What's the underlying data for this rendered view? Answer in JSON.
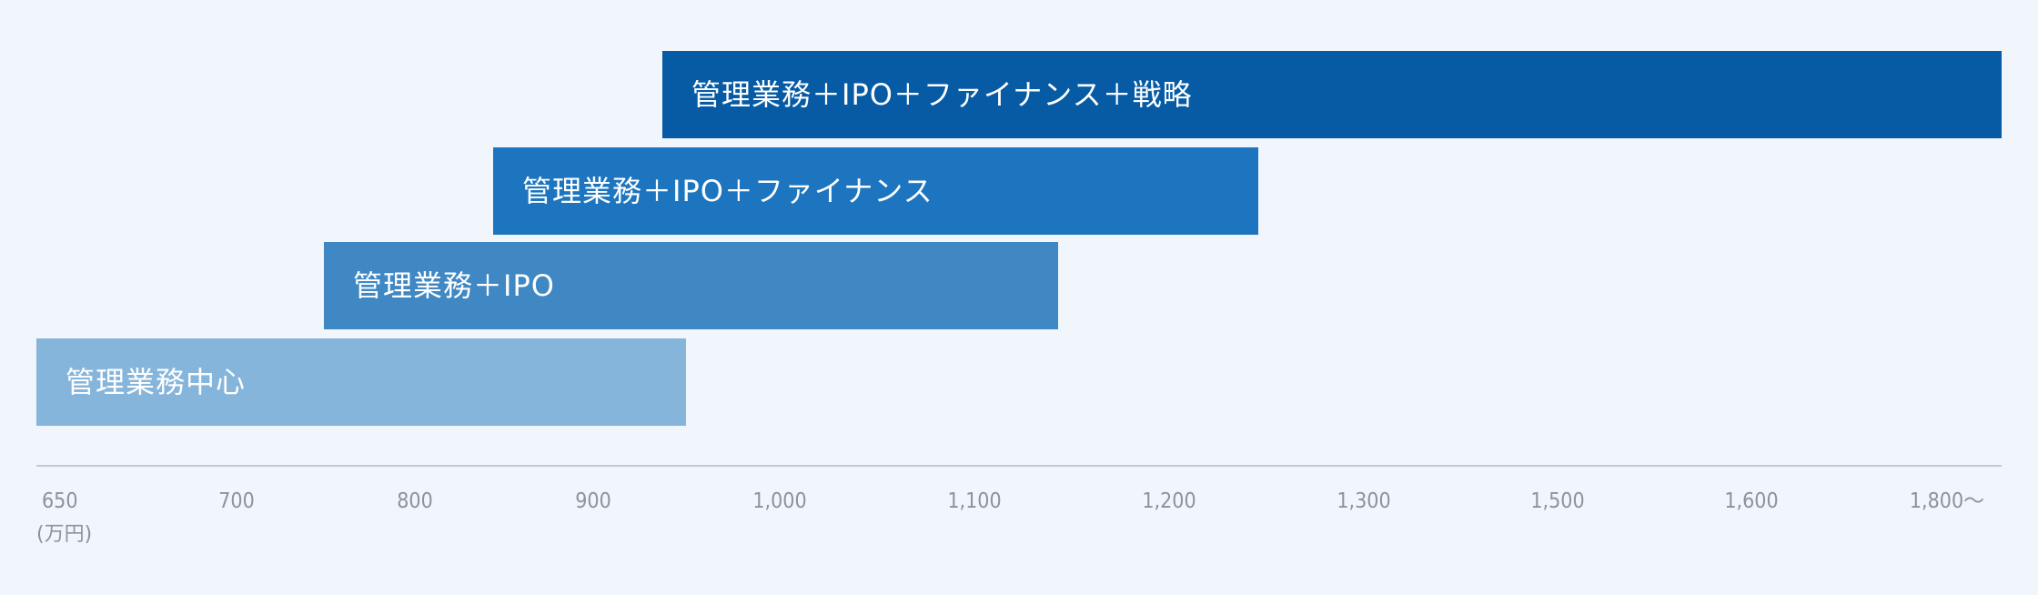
{
  "chart_data": {
    "type": "bar",
    "orientation": "horizontal-range",
    "xlabel": "(万円)",
    "ticks": [
      "650",
      "700",
      "800",
      "900",
      "1,000",
      "1,100",
      "1,200",
      "1,300",
      "1,500",
      "1,600",
      "1,800〜"
    ],
    "series": [
      {
        "label": "管理業務中心",
        "start": 650,
        "end": 950,
        "color": "#86b5db"
      },
      {
        "label": "管理業務＋IPO",
        "start": 750,
        "end": 1150,
        "color": "#3f88c4"
      },
      {
        "label": "管理業務＋IPO＋ファイナンス",
        "start": 850,
        "end": 1250,
        "color": "#1e75bf"
      },
      {
        "label": "管理業務＋IPO＋ファイナンス＋戦略",
        "start": 950,
        "end": 1800,
        "color": "#065ba4"
      }
    ],
    "axis_color": "#c4cad3"
  }
}
